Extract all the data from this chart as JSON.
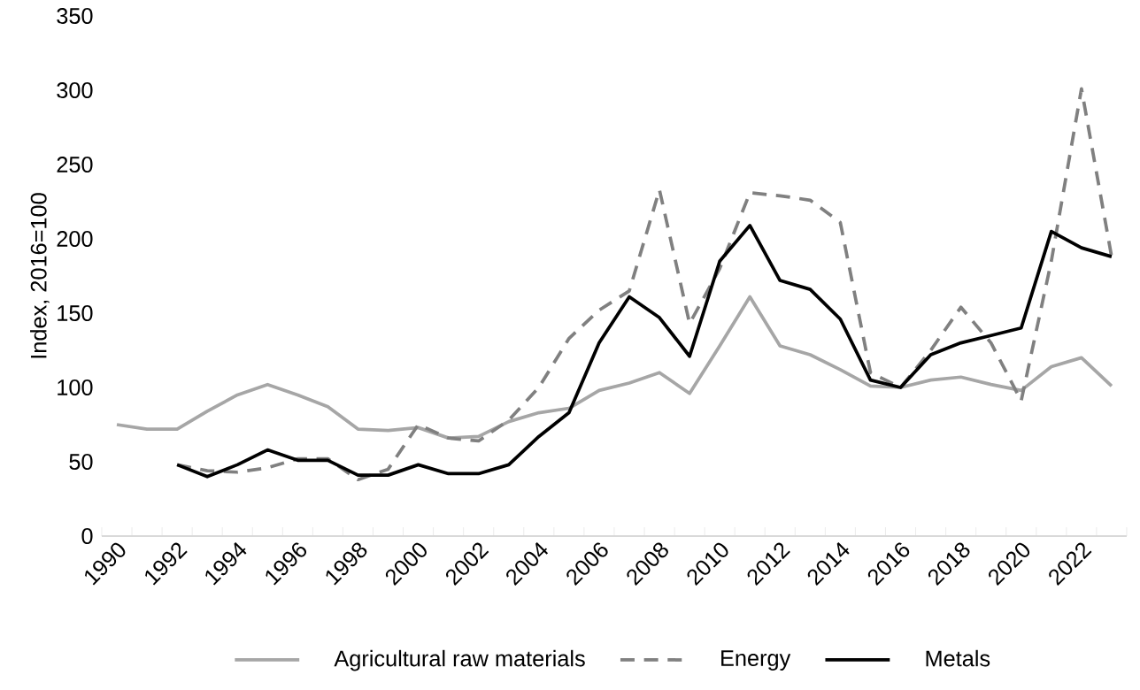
{
  "chart_data": {
    "type": "line",
    "ylabel": "Index, 2016=100",
    "categories": [
      "1990",
      null,
      "1992",
      null,
      "1994",
      null,
      "1996",
      null,
      "1998",
      null,
      "2000",
      null,
      "2002",
      null,
      "2004",
      null,
      "2006",
      null,
      "2008",
      null,
      "2010",
      null,
      "2012",
      null,
      "2014",
      null,
      "2016",
      null,
      "2018",
      null,
      "2020",
      null,
      "2022",
      null
    ],
    "series": [
      {
        "name": "Agricultural raw materials",
        "color": "#a6a6a6",
        "line_style": "solid",
        "values": [
          75,
          72,
          72,
          84,
          95,
          102,
          95,
          87,
          72,
          71,
          73,
          66,
          67,
          77,
          83,
          86,
          98,
          103,
          110,
          96,
          128,
          161,
          128,
          122,
          112,
          101,
          100,
          105,
          107,
          102,
          98,
          114,
          120,
          101
        ]
      },
      {
        "name": "Energy",
        "color": "#808080",
        "line_style": "dashed",
        "values": [
          null,
          null,
          48,
          44,
          43,
          46,
          52,
          52,
          38,
          45,
          75,
          66,
          64,
          78,
          100,
          133,
          152,
          165,
          233,
          143,
          180,
          231,
          229,
          226,
          211,
          110,
          100,
          125,
          154,
          130,
          91,
          185,
          301,
          188
        ]
      },
      {
        "name": "Metals",
        "color": "#000000",
        "line_style": "solid",
        "values": [
          null,
          null,
          48,
          40,
          48,
          58,
          51,
          51,
          41,
          41,
          48,
          42,
          42,
          48,
          67,
          83,
          130,
          161,
          147,
          121,
          185,
          209,
          172,
          166,
          146,
          105,
          100,
          122,
          130,
          135,
          140,
          205,
          194,
          188
        ]
      }
    ],
    "ylim": [
      0,
      350
    ],
    "yticks": [
      0,
      50,
      100,
      150,
      200,
      250,
      300,
      350
    ],
    "grid": false,
    "legend": "bottom",
    "marker": "none"
  }
}
